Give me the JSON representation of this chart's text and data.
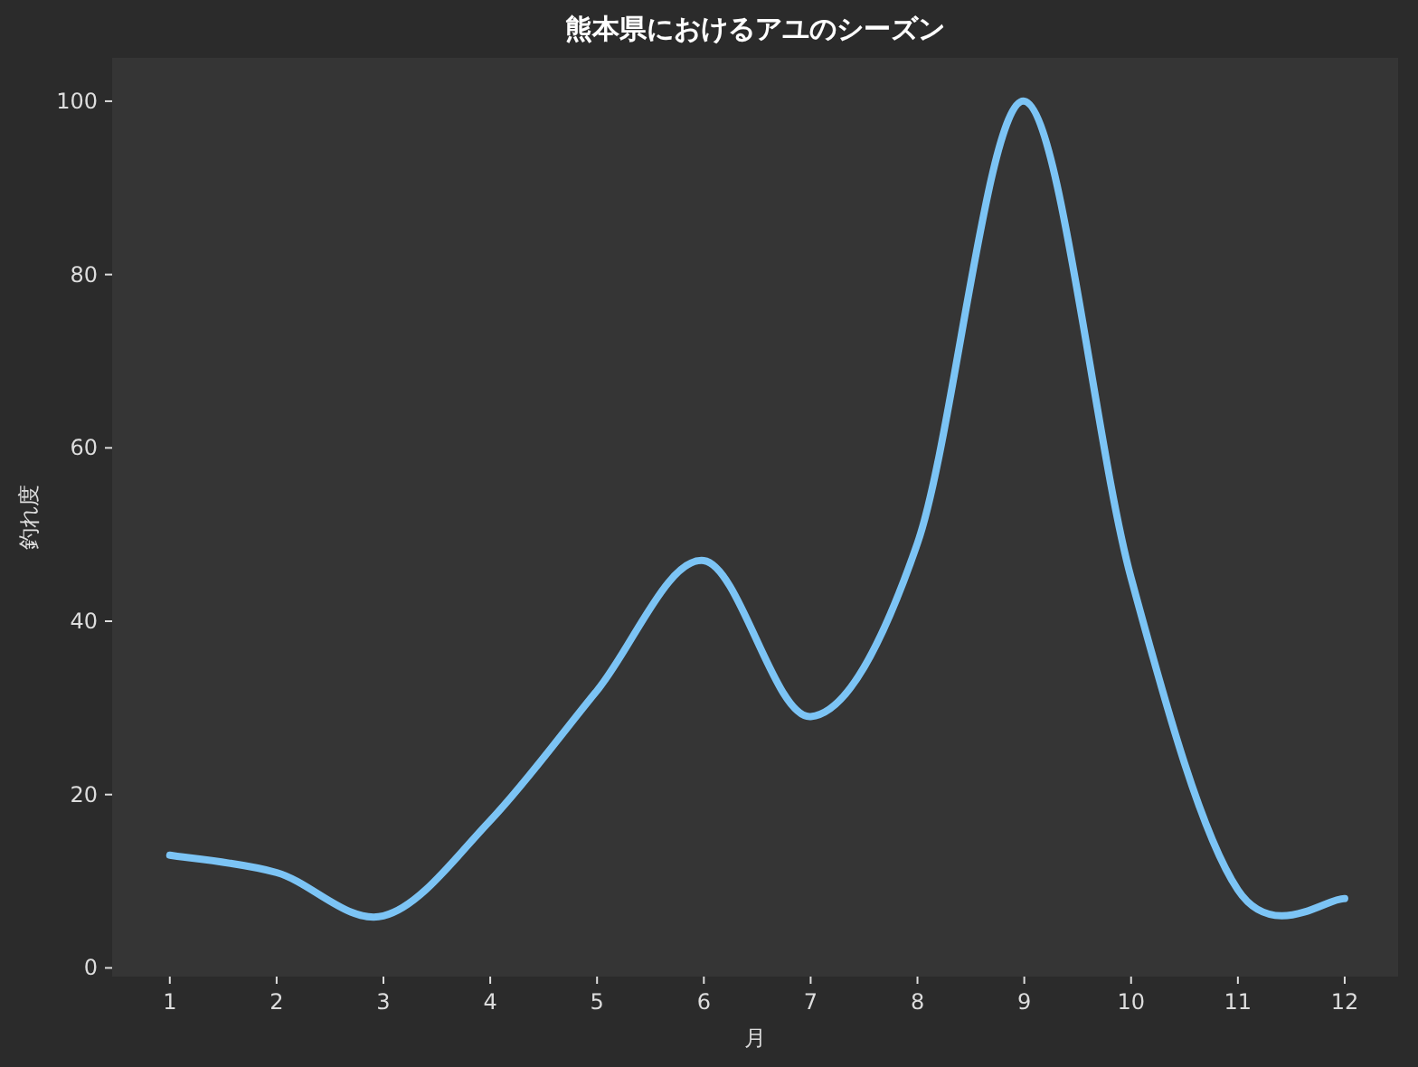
{
  "chart_data": {
    "type": "line",
    "title": "熊本県におけるアユのシーズン",
    "xlabel": "月",
    "ylabel": "釣れ度",
    "x": [
      1,
      2,
      3,
      4,
      5,
      6,
      7,
      8,
      9,
      10,
      11,
      12
    ],
    "series": [
      {
        "color": "#7cc4f5",
        "values": [
          13,
          11,
          6,
          17,
          32,
          47,
          29,
          49,
          100,
          45,
          9,
          8
        ]
      }
    ],
    "xlim": [
      0.46,
      12.5
    ],
    "xticks": [
      1,
      2,
      3,
      4,
      5,
      6,
      7,
      8,
      9,
      10,
      11,
      12
    ],
    "ylim": [
      -1,
      105
    ],
    "yticks": [
      0,
      20,
      40,
      60,
      80,
      100
    ],
    "grid": false,
    "marker": "none",
    "line_style": "solid"
  }
}
